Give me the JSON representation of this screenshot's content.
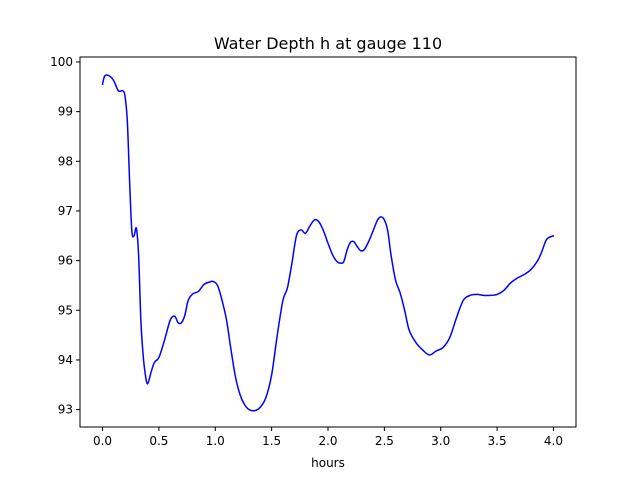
{
  "chart_data": {
    "type": "line",
    "title": "Water Depth h at gauge 110",
    "xlabel": "hours",
    "ylabel": "",
    "xlim": [
      -0.2,
      4.2
    ],
    "ylim": [
      92.65,
      100.1
    ],
    "xticks": [
      0.0,
      0.5,
      1.0,
      1.5,
      2.0,
      2.5,
      3.0,
      3.5,
      4.0
    ],
    "xtick_labels": [
      "0.0",
      "0.5",
      "1.0",
      "1.5",
      "2.0",
      "2.5",
      "3.0",
      "3.5",
      "4.0"
    ],
    "yticks": [
      93,
      94,
      95,
      96,
      97,
      98,
      99,
      100
    ],
    "ytick_labels": [
      "93",
      "94",
      "95",
      "96",
      "97",
      "98",
      "99",
      "100"
    ],
    "grid": false,
    "series": [
      {
        "color": "#0000ff",
        "x": [
          0.0,
          0.02,
          0.06,
          0.1,
          0.14,
          0.18,
          0.2,
          0.22,
          0.24,
          0.26,
          0.28,
          0.3,
          0.32,
          0.34,
          0.36,
          0.38,
          0.4,
          0.43,
          0.46,
          0.5,
          0.55,
          0.6,
          0.64,
          0.67,
          0.7,
          0.73,
          0.76,
          0.8,
          0.85,
          0.9,
          0.95,
          0.98,
          1.02,
          1.06,
          1.1,
          1.14,
          1.18,
          1.22,
          1.26,
          1.3,
          1.35,
          1.4,
          1.45,
          1.5,
          1.55,
          1.6,
          1.64,
          1.68,
          1.72,
          1.76,
          1.8,
          1.84,
          1.88,
          1.92,
          1.96,
          2.0,
          2.04,
          2.08,
          2.11,
          2.14,
          2.17,
          2.2,
          2.23,
          2.26,
          2.29,
          2.32,
          2.36,
          2.4,
          2.44,
          2.47,
          2.5,
          2.53,
          2.56,
          2.6,
          2.64,
          2.68,
          2.72,
          2.78,
          2.84,
          2.9,
          2.96,
          3.02,
          3.08,
          3.14,
          3.2,
          3.26,
          3.32,
          3.38,
          3.44,
          3.5,
          3.56,
          3.62,
          3.68,
          3.74,
          3.8,
          3.86,
          3.9,
          3.94,
          4.0
        ],
        "y": [
          99.55,
          99.72,
          99.72,
          99.62,
          99.42,
          99.42,
          99.3,
          98.8,
          97.6,
          96.6,
          96.5,
          96.65,
          96.1,
          94.8,
          94.1,
          93.7,
          93.52,
          93.75,
          93.95,
          94.05,
          94.4,
          94.8,
          94.88,
          94.75,
          94.75,
          94.9,
          95.2,
          95.33,
          95.38,
          95.52,
          95.57,
          95.58,
          95.5,
          95.2,
          94.8,
          94.2,
          93.65,
          93.3,
          93.1,
          93.0,
          92.98,
          93.05,
          93.25,
          93.7,
          94.5,
          95.2,
          95.45,
          95.95,
          96.5,
          96.62,
          96.55,
          96.7,
          96.82,
          96.78,
          96.6,
          96.35,
          96.12,
          95.98,
          95.95,
          95.98,
          96.22,
          96.37,
          96.38,
          96.28,
          96.2,
          96.22,
          96.38,
          96.6,
          96.82,
          96.88,
          96.82,
          96.6,
          96.1,
          95.6,
          95.35,
          95.0,
          94.6,
          94.35,
          94.2,
          94.1,
          94.18,
          94.25,
          94.45,
          94.85,
          95.2,
          95.3,
          95.32,
          95.3,
          95.3,
          95.32,
          95.4,
          95.55,
          95.65,
          95.72,
          95.82,
          96.0,
          96.2,
          96.43,
          96.5
        ]
      }
    ]
  }
}
